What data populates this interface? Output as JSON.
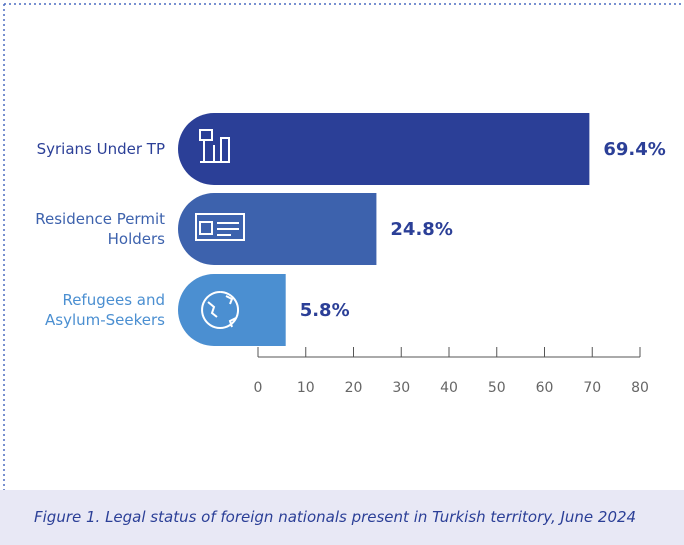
{
  "chart_data": {
    "type": "bar",
    "orientation": "horizontal",
    "caption": "Figure 1. Legal status of foreign nationals present in Turkish territory, June 2024",
    "categories": [
      "Syrians Under TP",
      "Residence Permit Holders",
      "Refugees and Asylum-Seekers"
    ],
    "values": [
      69.4,
      24.8,
      5.8
    ],
    "value_labels": [
      "69.4%",
      "24.8%",
      "5.8%"
    ],
    "colors": [
      "#2b3f97",
      "#3d62ad",
      "#4b8fd1"
    ],
    "xlim": [
      0,
      80
    ],
    "xticks": [
      0,
      10,
      20,
      30,
      40,
      50,
      60,
      70,
      80
    ]
  }
}
